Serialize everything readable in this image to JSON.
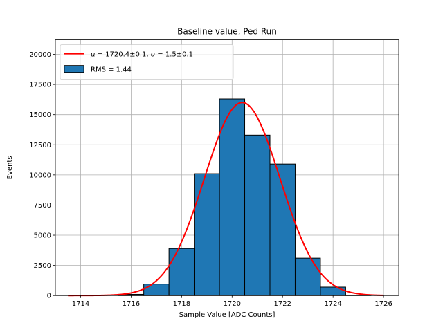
{
  "chart_data": {
    "type": "bar",
    "title": "Baseline value, Ped Run",
    "xlabel": "Sample Value [ADC Counts]",
    "ylabel": "Events",
    "xlim": [
      1713,
      1726.6
    ],
    "ylim": [
      0,
      21200
    ],
    "xticks": [
      1714,
      1716,
      1718,
      1720,
      1722,
      1724,
      1726
    ],
    "yticks": [
      0,
      2500,
      5000,
      7500,
      10000,
      12500,
      15000,
      17500,
      20000
    ],
    "xtick_labels": [
      "1714",
      "1716",
      "1718",
      "1720",
      "1722",
      "1724",
      "1726"
    ],
    "ytick_labels": [
      "0",
      "2500",
      "5000",
      "7500",
      "10000",
      "12500",
      "15000",
      "17500",
      "20000"
    ],
    "grid": true,
    "legend_placement": "top-left",
    "histogram": {
      "name": "RMS = 1.44",
      "color": "#1f77b4",
      "edge_color": "#000000",
      "bins": [
        {
          "center": 1714,
          "value": 0
        },
        {
          "center": 1715,
          "value": 0
        },
        {
          "center": 1716,
          "value": 100
        },
        {
          "center": 1717,
          "value": 950
        },
        {
          "center": 1718,
          "value": 3900
        },
        {
          "center": 1719,
          "value": 10100
        },
        {
          "center": 1720,
          "value": 16300
        },
        {
          "center": 1721,
          "value": 13300
        },
        {
          "center": 1722,
          "value": 10900
        },
        {
          "center": 1723,
          "value": 3100
        },
        {
          "center": 1724,
          "value": 700
        },
        {
          "center": 1725,
          "value": 40
        }
      ],
      "bin_width": 1
    },
    "fit": {
      "name": "μ = 1720.4±0.1, σ = 1.5±0.1",
      "name_mu": "μ",
      "name_sigma": "σ",
      "name_mu_value": "1720.4±0.1",
      "name_sigma_value": "1.5±0.1",
      "color": "#ff0000",
      "mu": 1720.4,
      "sigma": 1.5,
      "amplitude": 16000,
      "x_range": [
        1713.5,
        1726
      ]
    }
  }
}
